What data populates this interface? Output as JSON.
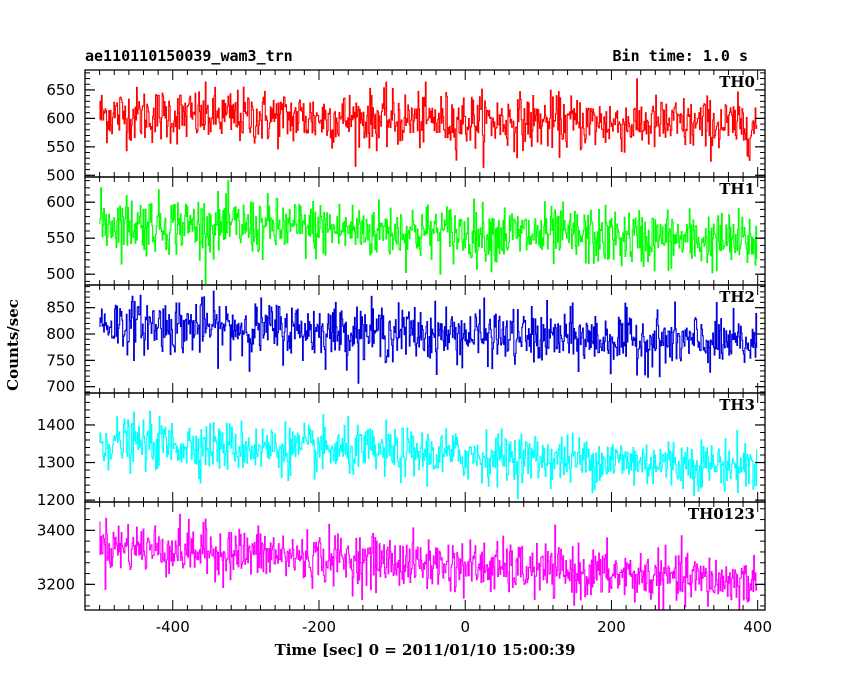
{
  "chart_data": {
    "type": "line",
    "title": "ae110110150039_wam3_trn",
    "bin_label": "Bin time: 1.0 s",
    "xlabel": "Time [sec] 0 = 2011/01/10 15:00:39",
    "ylabel": "Counts/sec",
    "xlim": [
      -520,
      410
    ],
    "x_ticks": [
      -400,
      -200,
      0,
      200,
      400
    ],
    "x_range": [
      -500,
      399
    ],
    "bin_time": 1.0,
    "grid": false,
    "panels": [
      {
        "name": "TH0",
        "color": "#ff0000",
        "ylim": [
          497,
          685
        ],
        "yticks": [
          500,
          550,
          600,
          650
        ],
        "mean_start": 607,
        "mean_end": 587,
        "spread": 24,
        "max": 682,
        "min": 500,
        "trend_points": [
          [
            -500,
            607
          ],
          [
            -200,
            605
          ],
          [
            0,
            597
          ],
          [
            200,
            592
          ],
          [
            399,
            587
          ]
        ]
      },
      {
        "name": "TH1",
        "color": "#00ff00",
        "ylim": [
          485,
          635
        ],
        "yticks": [
          500,
          550,
          600
        ],
        "mean_start": 572,
        "mean_end": 545,
        "spread": 20,
        "max": 632,
        "min": 485,
        "trend_points": [
          [
            -500,
            572
          ],
          [
            -200,
            565
          ],
          [
            0,
            553
          ],
          [
            200,
            548
          ],
          [
            399,
            545
          ]
        ]
      },
      {
        "name": "TH2",
        "color": "#0000dd",
        "ylim": [
          688,
          893
        ],
        "yticks": [
          700,
          750,
          800,
          850
        ],
        "mean_start": 820,
        "mean_end": 780,
        "spread": 26,
        "max": 890,
        "min": 690,
        "trend_points": [
          [
            -500,
            820
          ],
          [
            -200,
            812
          ],
          [
            0,
            790
          ],
          [
            200,
            782
          ],
          [
            399,
            780
          ]
        ]
      },
      {
        "name": "TH3",
        "color": "#00ffff",
        "ylim": [
          1195,
          1485
        ],
        "yticks": [
          1200,
          1300,
          1400
        ],
        "mean_start": 1355,
        "mean_end": 1290,
        "spread": 33,
        "max": 1480,
        "min": 1200,
        "trend_points": [
          [
            -500,
            1355
          ],
          [
            -200,
            1338
          ],
          [
            0,
            1305
          ],
          [
            200,
            1295
          ],
          [
            399,
            1290
          ]
        ]
      },
      {
        "name": "TH0123",
        "color": "#ff00ff",
        "ylim": [
          3105,
          3505
        ],
        "yticks": [
          3200,
          3400
        ],
        "mean_start": 3345,
        "mean_end": 3205,
        "spread": 48,
        "max": 3500,
        "min": 3105,
        "trend_points": [
          [
            -500,
            3345
          ],
          [
            -200,
            3310
          ],
          [
            0,
            3240
          ],
          [
            200,
            3215
          ],
          [
            399,
            3205
          ]
        ]
      }
    ]
  }
}
